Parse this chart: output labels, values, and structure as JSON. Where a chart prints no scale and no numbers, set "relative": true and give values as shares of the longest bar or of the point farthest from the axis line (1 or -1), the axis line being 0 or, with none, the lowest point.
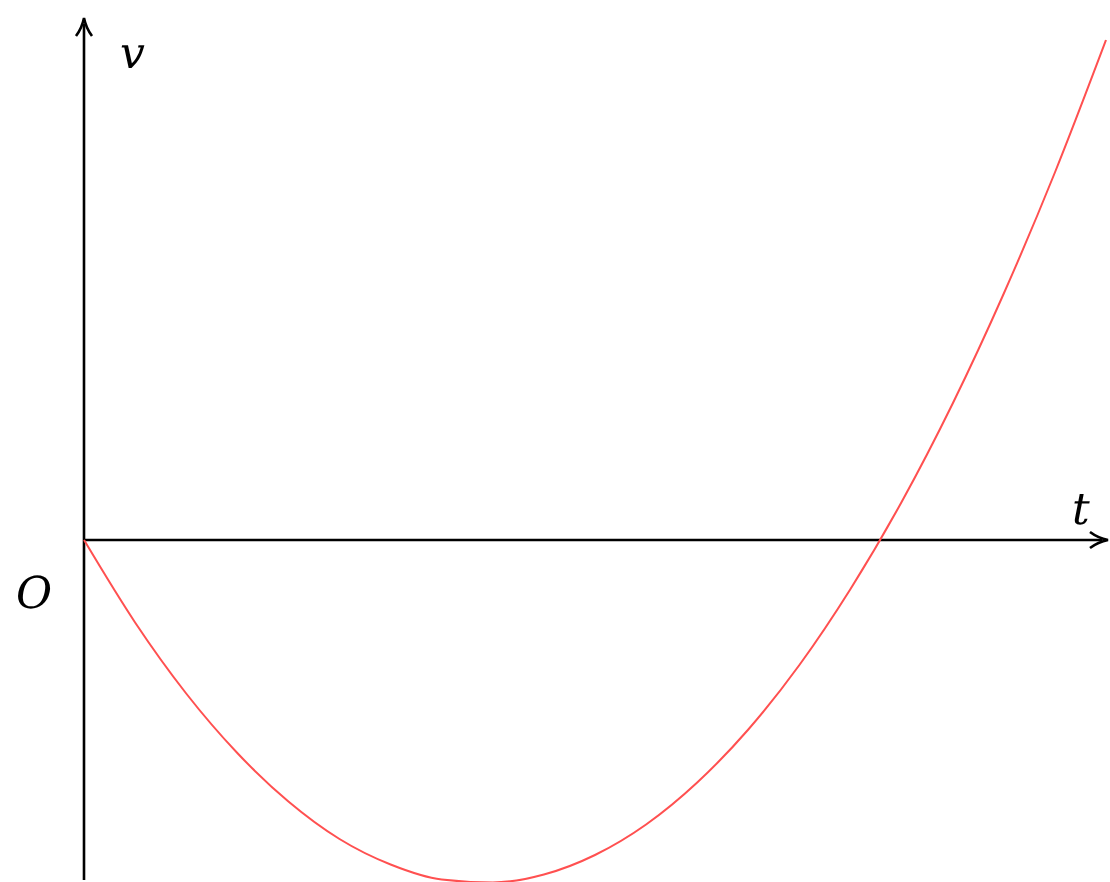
{
  "chart_data": {
    "type": "line",
    "relative": true,
    "xlabel": "t",
    "ylabel": "v",
    "annotations": [
      "O"
    ],
    "categories": [
      null,
      null,
      null,
      null,
      null,
      null,
      null,
      null,
      null,
      null,
      null,
      null,
      null,
      null,
      null,
      null,
      null,
      null,
      null,
      null,
      null
    ],
    "series": [
      {
        "color": "#ff5050",
        "values": [
          0,
          -0.165,
          -0.307,
          -0.426,
          -0.523,
          -0.598,
          -0.649,
          -0.679,
          -0.685,
          -0.669,
          -0.63,
          -0.569,
          -0.485,
          -0.379,
          -0.25,
          -0.098,
          0.076,
          0.273,
          0.493,
          0.735,
          1
        ]
      }
    ]
  }
}
